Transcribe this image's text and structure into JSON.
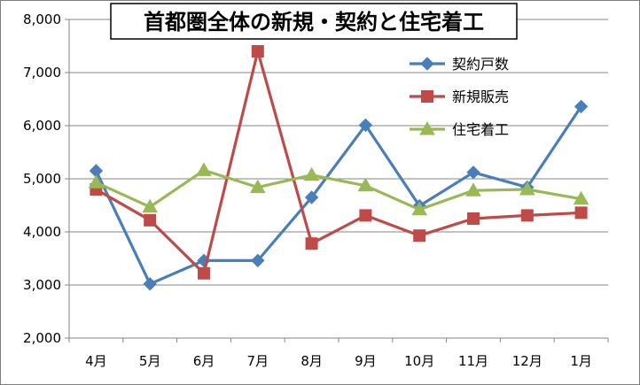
{
  "chart_data": {
    "type": "line",
    "title": "首都圏全体の新規・契約と住宅着工",
    "categories": [
      "4月",
      "5月",
      "6月",
      "7月",
      "8月",
      "9月",
      "10月",
      "11月",
      "12月",
      "1月"
    ],
    "ylim": [
      2000,
      8000
    ],
    "yticks": [
      2000,
      3000,
      4000,
      5000,
      6000,
      7000,
      8000
    ],
    "ytick_labels": [
      "2,000",
      "3,000",
      "4,000",
      "5,000",
      "6,000",
      "7,000",
      "8,000"
    ],
    "grid": true,
    "legend_position": "top-right",
    "series": [
      {
        "name": "契約戸数",
        "color": "#4a7ebb",
        "marker": "diamond",
        "values": [
          5150,
          3020,
          3460,
          3460,
          4650,
          6010,
          4490,
          5120,
          4840,
          6360
        ]
      },
      {
        "name": "新規販売",
        "color": "#be4b48",
        "marker": "square",
        "values": [
          4800,
          4220,
          3220,
          7400,
          3780,
          4310,
          3930,
          4250,
          4310,
          4360
        ]
      },
      {
        "name": "住宅着工",
        "color": "#98b954",
        "marker": "triangle",
        "values": [
          4930,
          4470,
          5160,
          4840,
          5070,
          4870,
          4420,
          4780,
          4800,
          4620
        ]
      }
    ]
  }
}
